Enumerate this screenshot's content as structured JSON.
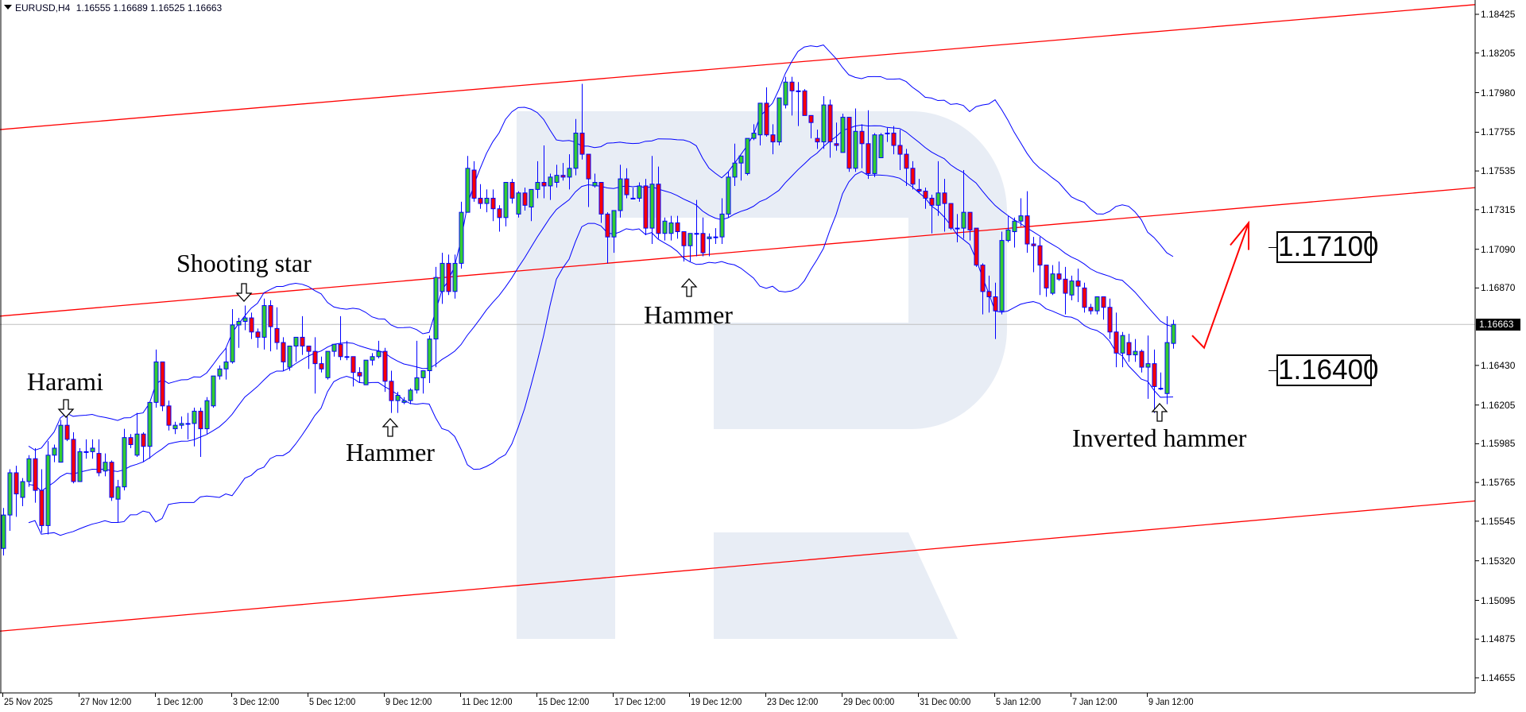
{
  "window": {
    "menu_icon": "triangle-down-icon",
    "title": "EURUSD,H4",
    "ohlc": "1.16555 1.16689 1.16525 1.16663"
  },
  "chart_data": {
    "type": "candlestick",
    "symbol": "EURUSD",
    "timeframe": "H4",
    "ylim": [
      1.1457,
      1.1851
    ],
    "grid": false,
    "y_ticks": [
      "1.18425",
      "1.18205",
      "1.17980",
      "1.17755",
      "1.17535",
      "1.17315",
      "1.17090",
      "1.16870",
      "1.16430",
      "1.16205",
      "1.15985",
      "1.15765",
      "1.15545",
      "1.15320",
      "1.15095",
      "1.14875",
      "1.14655"
    ],
    "x_ticks": [
      "25 Nov 2025",
      "27 Nov 12:00",
      "1 Dec 12:00",
      "3 Dec 12:00",
      "5 Dec 12:00",
      "9 Dec 12:00",
      "11 Dec 12:00",
      "15 Dec 12:00",
      "17 Dec 12:00",
      "19 Dec 12:00",
      "23 Dec 12:00",
      "29 Dec 00:00",
      "31 Dec 00:00",
      "5 Jan 12:00",
      "7 Jan 12:00",
      "9 Jan 12:00"
    ],
    "current_price": "1.16663",
    "colors": {
      "bull": "#32cd32",
      "bear": "#ff0000",
      "outline": "#0000ff",
      "bands": "#0000ff",
      "channel": "#ff0000",
      "bid_line": "#c0c0c0",
      "watermark": "#e8edf5",
      "forecast_arrow": "#ff0000"
    },
    "candles_ohlc": [
      [
        1.1539,
        1.1562,
        1.1535,
        1.1558
      ],
      [
        1.1558,
        1.1584,
        1.1549,
        1.1582
      ],
      [
        1.1582,
        1.1586,
        1.1557,
        1.157
      ],
      [
        1.1568,
        1.1579,
        1.1563,
        1.1577
      ],
      [
        1.1577,
        1.1592,
        1.1574,
        1.159
      ],
      [
        1.159,
        1.1596,
        1.1565,
        1.1572
      ],
      [
        1.1572,
        1.1584,
        1.1548,
        1.1552
      ],
      [
        1.1552,
        1.16,
        1.1547,
        1.1592
      ],
      [
        1.1592,
        1.1598,
        1.1588,
        1.1596
      ],
      [
        1.1588,
        1.1612,
        1.1588,
        1.1609
      ],
      [
        1.1609,
        1.1614,
        1.16,
        1.1601
      ],
      [
        1.1601,
        1.1605,
        1.1576,
        1.1577
      ],
      [
        1.1577,
        1.1596,
        1.1577,
        1.1594
      ],
      [
        1.1594,
        1.1601,
        1.159,
        1.1594
      ],
      [
        1.1594,
        1.1601,
        1.159,
        1.1596
      ],
      [
        1.1593,
        1.1601,
        1.158,
        1.1582
      ],
      [
        1.1583,
        1.1593,
        1.158,
        1.1588
      ],
      [
        1.1588,
        1.1589,
        1.1566,
        1.1568
      ],
      [
        1.1567,
        1.1578,
        1.1554,
        1.1574
      ],
      [
        1.1574,
        1.1607,
        1.1572,
        1.1602
      ],
      [
        1.1602,
        1.1604,
        1.1596,
        1.1598
      ],
      [
        1.1592,
        1.1616,
        1.1591,
        1.1604
      ],
      [
        1.1604,
        1.1605,
        1.1588,
        1.1597
      ],
      [
        1.1597,
        1.1622,
        1.159,
        1.1622
      ],
      [
        1.1622,
        1.1652,
        1.1619,
        1.1645
      ],
      [
        1.1645,
        1.1645,
        1.1617,
        1.162
      ],
      [
        1.162,
        1.1623,
        1.1606,
        1.1609
      ],
      [
        1.1607,
        1.1611,
        1.1604,
        1.1609
      ],
      [
        1.1609,
        1.1614,
        1.1607,
        1.161
      ],
      [
        1.161,
        1.1616,
        1.1601,
        1.161
      ],
      [
        1.161,
        1.1619,
        1.1597,
        1.1617
      ],
      [
        1.1617,
        1.1619,
        1.1591,
        1.1607
      ],
      [
        1.1607,
        1.1625,
        1.1604,
        1.1623
      ],
      [
        1.162,
        1.1637,
        1.1619,
        1.1637
      ],
      [
        1.1637,
        1.1643,
        1.1635,
        1.1641
      ],
      [
        1.1641,
        1.1653,
        1.1635,
        1.1645
      ],
      [
        1.1645,
        1.1675,
        1.1644,
        1.1666
      ],
      [
        1.1666,
        1.167,
        1.1653,
        1.1668
      ],
      [
        1.1668,
        1.1677,
        1.1663,
        1.167
      ],
      [
        1.167,
        1.1673,
        1.1658,
        1.1662
      ],
      [
        1.1662,
        1.1664,
        1.1653,
        1.1659
      ],
      [
        1.1659,
        1.1681,
        1.1652,
        1.1677
      ],
      [
        1.1677,
        1.168,
        1.1651,
        1.1665
      ],
      [
        1.1664,
        1.1676,
        1.1652,
        1.1656
      ],
      [
        1.1656,
        1.1659,
        1.164,
        1.1645
      ],
      [
        1.1642,
        1.1654,
        1.164,
        1.1654
      ],
      [
        1.1654,
        1.1659,
        1.1645,
        1.1659
      ],
      [
        1.1659,
        1.1671,
        1.1649,
        1.1654
      ],
      [
        1.1654,
        1.1654,
        1.1641,
        1.1651
      ],
      [
        1.1651,
        1.1659,
        1.1627,
        1.1644
      ],
      [
        1.1644,
        1.1648,
        1.1639,
        1.1641
      ],
      [
        1.1636,
        1.1651,
        1.1635,
        1.1651
      ],
      [
        1.1651,
        1.1655,
        1.1648,
        1.1655
      ],
      [
        1.1655,
        1.1671,
        1.1646,
        1.1648
      ],
      [
        1.1648,
        1.1657,
        1.1646,
        1.1648
      ],
      [
        1.1648,
        1.1648,
        1.1631,
        1.1639
      ],
      [
        1.1639,
        1.1642,
        1.1633,
        1.1637
      ],
      [
        1.1632,
        1.1646,
        1.1632,
        1.1646
      ],
      [
        1.1646,
        1.165,
        1.1643,
        1.1648
      ],
      [
        1.1648,
        1.1657,
        1.1647,
        1.1651
      ],
      [
        1.1651,
        1.1653,
        1.1628,
        1.1634
      ],
      [
        1.1634,
        1.164,
        1.1616,
        1.1623
      ],
      [
        1.1623,
        1.1628,
        1.1616,
        1.1626
      ],
      [
        1.1622,
        1.1625,
        1.1621,
        1.1623
      ],
      [
        1.1623,
        1.163,
        1.1621,
        1.1629
      ],
      [
        1.1629,
        1.1657,
        1.1627,
        1.1636
      ],
      [
        1.1636,
        1.164,
        1.1627,
        1.164
      ],
      [
        1.164,
        1.166,
        1.1633,
        1.1658
      ],
      [
        1.1658,
        1.1699,
        1.1642,
        1.1693
      ],
      [
        1.1685,
        1.1707,
        1.1678,
        1.1701
      ],
      [
        1.1701,
        1.1706,
        1.1683,
        1.1685
      ],
      [
        1.1685,
        1.1706,
        1.1681,
        1.1701
      ],
      [
        1.1701,
        1.1736,
        1.1698,
        1.173
      ],
      [
        1.173,
        1.1762,
        1.173,
        1.1755
      ],
      [
        1.1754,
        1.1759,
        1.1736,
        1.1738
      ],
      [
        1.1738,
        1.1746,
        1.1732,
        1.1735
      ],
      [
        1.1735,
        1.1743,
        1.173,
        1.1738
      ],
      [
        1.1738,
        1.1743,
        1.1725,
        1.1732
      ],
      [
        1.1732,
        1.1734,
        1.1719,
        1.1727
      ],
      [
        1.1727,
        1.1747,
        1.1722,
        1.1747
      ],
      [
        1.1747,
        1.1749,
        1.1735,
        1.1738
      ],
      [
        1.1729,
        1.1742,
        1.1727,
        1.1741
      ],
      [
        1.1741,
        1.1744,
        1.1731,
        1.1734
      ],
      [
        1.1733,
        1.1743,
        1.1725,
        1.1743
      ],
      [
        1.1743,
        1.1759,
        1.1738,
        1.1747
      ],
      [
        1.1747,
        1.1768,
        1.1738,
        1.1745
      ],
      [
        1.1745,
        1.1752,
        1.1737,
        1.175
      ],
      [
        1.1747,
        1.1757,
        1.1744,
        1.1751
      ],
      [
        1.1751,
        1.1758,
        1.1748,
        1.175
      ],
      [
        1.175,
        1.1763,
        1.1743,
        1.1755
      ],
      [
        1.1755,
        1.1783,
        1.1751,
        1.1775
      ],
      [
        1.1775,
        1.1803,
        1.176,
        1.1763
      ],
      [
        1.1763,
        1.1763,
        1.1733,
        1.1749
      ],
      [
        1.1745,
        1.1752,
        1.1744,
        1.1747
      ],
      [
        1.1747,
        1.1747,
        1.1724,
        1.1729
      ],
      [
        1.1729,
        1.173,
        1.1701,
        1.1716
      ],
      [
        1.1716,
        1.1731,
        1.1707,
        1.1731
      ],
      [
        1.1731,
        1.1757,
        1.1727,
        1.1749
      ],
      [
        1.1749,
        1.1755,
        1.1738,
        1.174
      ],
      [
        1.1738,
        1.1744,
        1.1738,
        1.1738
      ],
      [
        1.1738,
        1.1747,
        1.1736,
        1.1745
      ],
      [
        1.1745,
        1.1749,
        1.1717,
        1.1721
      ],
      [
        1.1721,
        1.1762,
        1.1712,
        1.1746
      ],
      [
        1.1746,
        1.1756,
        1.1715,
        1.1718
      ],
      [
        1.1718,
        1.1727,
        1.1714,
        1.1725
      ],
      [
        1.1718,
        1.1728,
        1.1714,
        1.1724
      ],
      [
        1.1724,
        1.1728,
        1.1715,
        1.1719
      ],
      [
        1.1719,
        1.1719,
        1.1702,
        1.1711
      ],
      [
        1.1711,
        1.1718,
        1.1702,
        1.1718
      ],
      [
        1.1718,
        1.1737,
        1.1705,
        1.1718
      ],
      [
        1.1718,
        1.1727,
        1.1705,
        1.1707
      ],
      [
        1.1715,
        1.1718,
        1.1705,
        1.1716
      ],
      [
        1.1716,
        1.1721,
        1.1712,
        1.1716
      ],
      [
        1.1716,
        1.1738,
        1.1712,
        1.1729
      ],
      [
        1.1729,
        1.1753,
        1.1727,
        1.175
      ],
      [
        1.175,
        1.1769,
        1.1745,
        1.1758
      ],
      [
        1.1758,
        1.1762,
        1.1748,
        1.1762
      ],
      [
        1.1752,
        1.1772,
        1.1751,
        1.1772
      ],
      [
        1.1772,
        1.178,
        1.1771,
        1.1775
      ],
      [
        1.1774,
        1.1792,
        1.1768,
        1.1792
      ],
      [
        1.1792,
        1.1801,
        1.1773,
        1.1774
      ],
      [
        1.1774,
        1.178,
        1.1763,
        1.177
      ],
      [
        1.177,
        1.1795,
        1.1768,
        1.1795
      ],
      [
        1.1791,
        1.1807,
        1.1789,
        1.1804
      ],
      [
        1.1804,
        1.1807,
        1.1785,
        1.1799
      ],
      [
        1.1799,
        1.1804,
        1.1779,
        1.1799
      ],
      [
        1.1799,
        1.18,
        1.1785,
        1.1785
      ],
      [
        1.1785,
        1.1785,
        1.1772,
        1.1781
      ],
      [
        1.1772,
        1.1777,
        1.1766,
        1.177
      ],
      [
        1.177,
        1.1796,
        1.1766,
        1.1791
      ],
      [
        1.1791,
        1.1794,
        1.1761,
        1.177
      ],
      [
        1.1769,
        1.1781,
        1.1765,
        1.1768
      ],
      [
        1.1764,
        1.1786,
        1.1764,
        1.1784
      ],
      [
        1.1784,
        1.1784,
        1.1753,
        1.1755
      ],
      [
        1.1755,
        1.1789,
        1.1753,
        1.1776
      ],
      [
        1.1776,
        1.178,
        1.1755,
        1.1769
      ],
      [
        1.1769,
        1.1788,
        1.1749,
        1.1752
      ],
      [
        1.1752,
        1.1775,
        1.175,
        1.1774
      ],
      [
        1.1761,
        1.1775,
        1.1761,
        1.1774
      ],
      [
        1.1775,
        1.1778,
        1.177,
        1.1775
      ],
      [
        1.1775,
        1.1779,
        1.1763,
        1.1768
      ],
      [
        1.1768,
        1.1777,
        1.1754,
        1.1763
      ],
      [
        1.1763,
        1.1766,
        1.1745,
        1.1755
      ],
      [
        1.1755,
        1.1759,
        1.1743,
        1.1746
      ],
      [
        1.1743,
        1.1749,
        1.1741,
        1.1742
      ],
      [
        1.1742,
        1.1744,
        1.1732,
        1.1738
      ],
      [
        1.1738,
        1.174,
        1.1718,
        1.1734
      ],
      [
        1.1734,
        1.1759,
        1.1728,
        1.1741
      ],
      [
        1.1741,
        1.1749,
        1.1719,
        1.1735
      ],
      [
        1.1735,
        1.1735,
        1.172,
        1.1721
      ],
      [
        1.1721,
        1.1729,
        1.1713,
        1.1721
      ],
      [
        1.1721,
        1.1754,
        1.1715,
        1.173
      ],
      [
        1.173,
        1.173,
        1.1714,
        1.172
      ],
      [
        1.1721,
        1.1721,
        1.1699,
        1.17
      ],
      [
        1.17,
        1.1701,
        1.1672,
        1.1685
      ],
      [
        1.1685,
        1.1694,
        1.1673,
        1.1682
      ],
      [
        1.1682,
        1.169,
        1.1658,
        1.1674
      ],
      [
        1.1674,
        1.1719,
        1.1672,
        1.1714
      ],
      [
        1.1714,
        1.1728,
        1.1713,
        1.172
      ],
      [
        1.1719,
        1.1727,
        1.171,
        1.1725
      ],
      [
        1.1725,
        1.1738,
        1.1722,
        1.1728
      ],
      [
        1.1728,
        1.1742,
        1.1707,
        1.1712
      ],
      [
        1.1712,
        1.1716,
        1.1696,
        1.1711
      ],
      [
        1.1711,
        1.1716,
        1.1683,
        1.17
      ],
      [
        1.17,
        1.17,
        1.1682,
        1.1687
      ],
      [
        1.1684,
        1.17,
        1.1683,
        1.1695
      ],
      [
        1.1695,
        1.1702,
        1.1691,
        1.1692
      ],
      [
        1.1692,
        1.1699,
        1.1672,
        1.1684
      ],
      [
        1.1683,
        1.1694,
        1.168,
        1.1691
      ],
      [
        1.1691,
        1.1698,
        1.1679,
        1.1688
      ],
      [
        1.1687,
        1.169,
        1.1673,
        1.1676
      ],
      [
        1.1676,
        1.1678,
        1.1672,
        1.1674
      ],
      [
        1.1674,
        1.1682,
        1.1672,
        1.1682
      ],
      [
        1.1682,
        1.1682,
        1.1669,
        1.1676
      ],
      [
        1.1676,
        1.1681,
        1.1658,
        1.1662
      ],
      [
        1.1662,
        1.1673,
        1.1642,
        1.165
      ],
      [
        1.165,
        1.1662,
        1.1642,
        1.166
      ],
      [
        1.1656,
        1.1661,
        1.1645,
        1.1649
      ],
      [
        1.1649,
        1.1658,
        1.1645,
        1.1651
      ],
      [
        1.1651,
        1.1652,
        1.1639,
        1.1642
      ],
      [
        1.1642,
        1.166,
        1.1624,
        1.1644
      ],
      [
        1.1644,
        1.1652,
        1.1616,
        1.1631
      ],
      [
        1.163,
        1.1639,
        1.1629,
        1.163
      ],
      [
        1.1627,
        1.1671,
        1.1621,
        1.1656
      ],
      [
        1.16555,
        1.16689,
        1.16525,
        1.16663
      ]
    ],
    "channel_lines": [
      {
        "start_price": 1.1777,
        "end_price": 1.1848
      },
      {
        "start_price": 1.1671,
        "end_price": 1.1744
      },
      {
        "start_price": 1.1492,
        "end_price": 1.1566
      }
    ],
    "forecast_arrow_prices": [
      1.166,
      1.1653,
      1.1724
    ],
    "annotations": [
      {
        "text": "Harami",
        "arrow": "down"
      },
      {
        "text": "Shooting star",
        "arrow": "down"
      },
      {
        "text": "Hammer",
        "arrow": "up"
      },
      {
        "text": "Hammer",
        "arrow": "up"
      },
      {
        "text": "Inverted hammer",
        "arrow": "up"
      }
    ],
    "levels": [
      "1.17100",
      "1.16400"
    ]
  }
}
